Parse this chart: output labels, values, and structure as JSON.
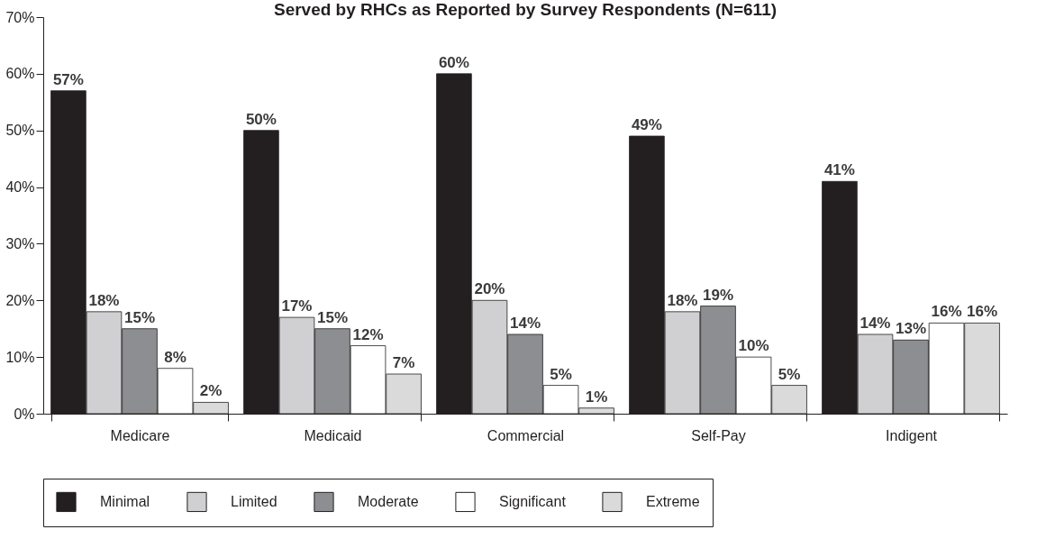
{
  "chart_data": {
    "type": "bar",
    "title": "Served by RHCs as Reported by Survey Respondents (N=611)",
    "categories": [
      "Medicare",
      "Medicaid",
      "Commercial",
      "Self-Pay",
      "Indigent"
    ],
    "series": [
      {
        "name": "Minimal",
        "color": "#231f20",
        "values": [
          57,
          50,
          60,
          49,
          41
        ],
        "value_labels": [
          "57%",
          "50%",
          "60%",
          "49%",
          "41%"
        ]
      },
      {
        "name": "Limited",
        "color": "#d0d0d2",
        "values": [
          18,
          17,
          20,
          18,
          14
        ],
        "value_labels": [
          "18%",
          "17%",
          "20%",
          "18%",
          "14%"
        ]
      },
      {
        "name": "Moderate",
        "color": "#8d8e91",
        "values": [
          15,
          15,
          14,
          19,
          13
        ],
        "value_labels": [
          "15%",
          "15%",
          "14%",
          "19%",
          "13%"
        ]
      },
      {
        "name": "Significant",
        "color": "#ffffff",
        "values": [
          8,
          12,
          5,
          10,
          16
        ],
        "value_labels": [
          "8%",
          "12%",
          "5%",
          "10%",
          "16%"
        ]
      },
      {
        "name": "Extreme",
        "color": "#dadadb",
        "values": [
          2,
          7,
          1,
          5,
          16
        ],
        "value_labels": [
          "2%",
          "7%",
          "1%",
          "5%",
          "16%"
        ]
      }
    ],
    "ylim": [
      0,
      70
    ],
    "yticks": [
      {
        "value": 0,
        "label": "0%"
      },
      {
        "value": 10,
        "label": "10%"
      },
      {
        "value": 20,
        "label": "20%"
      },
      {
        "value": 30,
        "label": "30%"
      },
      {
        "value": 40,
        "label": "40%"
      },
      {
        "value": 50,
        "label": "50%"
      },
      {
        "value": 60,
        "label": "60%"
      },
      {
        "value": 70,
        "label": "70%"
      }
    ],
    "grid": false,
    "legend": "bottom"
  }
}
